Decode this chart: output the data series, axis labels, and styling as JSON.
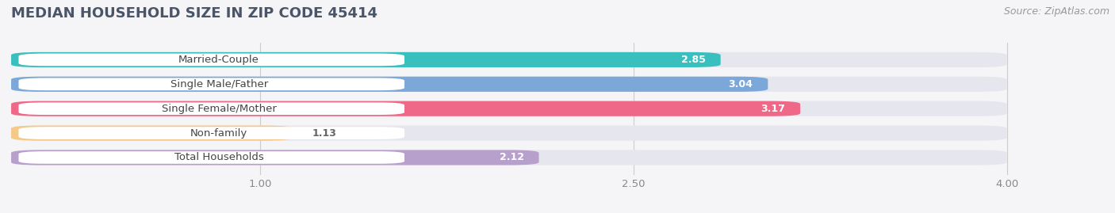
{
  "title": "MEDIAN HOUSEHOLD SIZE IN ZIP CODE 45414",
  "source": "Source: ZipAtlas.com",
  "categories": [
    "Married-Couple",
    "Single Male/Father",
    "Single Female/Mother",
    "Non-family",
    "Total Households"
  ],
  "values": [
    2.85,
    3.04,
    3.17,
    1.13,
    2.12
  ],
  "colors": [
    "#3abfbf",
    "#7ba8d8",
    "#f06888",
    "#f5c98a",
    "#b8a0cc"
  ],
  "bar_bg_color": "#e6e6ee",
  "xlim_min": 0.0,
  "xlim_max": 4.3,
  "data_min": 1.0,
  "data_max": 4.0,
  "xticks": [
    1.0,
    2.5,
    4.0
  ],
  "title_fontsize": 13,
  "source_fontsize": 9,
  "label_fontsize": 9.5,
  "value_fontsize": 9,
  "background_color": "#f5f5f7",
  "label_text_color": "#444444",
  "value_color_inside": "white",
  "value_color_outside": "#666666"
}
